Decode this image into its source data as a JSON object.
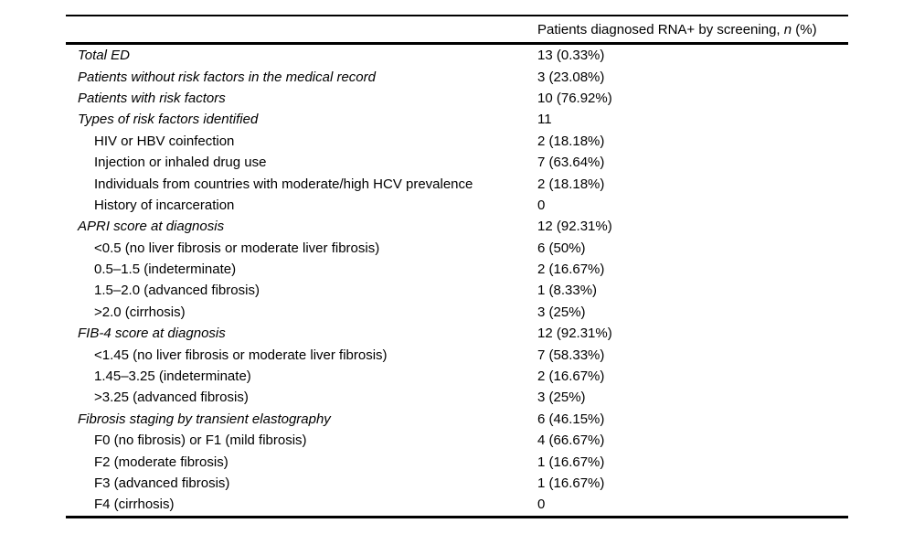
{
  "page": {
    "background_color": "#ffffff",
    "text_color": "#000000"
  },
  "table": {
    "header": {
      "label_column": "",
      "value_column_prefix": "Patients diagnosed RNA+ by screening, ",
      "value_column_n": "n",
      "value_column_suffix": " (%)"
    },
    "rows": [
      {
        "label": "Total ED",
        "value": "13 (0.33%)",
        "indent": 0,
        "italic": true
      },
      {
        "label": "Patients without risk factors in the medical record",
        "value": "3 (23.08%)",
        "indent": 0,
        "italic": true
      },
      {
        "label": "Patients with risk factors",
        "value": "10 (76.92%)",
        "indent": 0,
        "italic": true
      },
      {
        "label": "Types of risk factors identified",
        "value": "11",
        "indent": 0,
        "italic": true
      },
      {
        "label": "HIV or HBV coinfection",
        "value": "2 (18.18%)",
        "indent": 1,
        "italic": false
      },
      {
        "label": "Injection or inhaled drug use",
        "value": "7 (63.64%)",
        "indent": 1,
        "italic": false
      },
      {
        "label": "Individuals from countries with moderate/high HCV prevalence",
        "value": "2 (18.18%)",
        "indent": 1,
        "italic": false
      },
      {
        "label": "History of incarceration",
        "value": "0",
        "indent": 1,
        "italic": false
      },
      {
        "label": "APRI score at diagnosis",
        "value": "12 (92.31%)",
        "indent": 0,
        "italic": true
      },
      {
        "label": "<0.5 (no liver fibrosis or moderate liver fibrosis)",
        "value": "6 (50%)",
        "indent": 1,
        "italic": false
      },
      {
        "label": "0.5–1.5 (indeterminate)",
        "value": "2 (16.67%)",
        "indent": 1,
        "italic": false
      },
      {
        "label": "1.5–2.0 (advanced fibrosis)",
        "value": "1 (8.33%)",
        "indent": 1,
        "italic": false
      },
      {
        "label": ">2.0 (cirrhosis)",
        "value": "3 (25%)",
        "indent": 1,
        "italic": false
      },
      {
        "label": "FIB-4 score at diagnosis",
        "value": "12 (92.31%)",
        "indent": 0,
        "italic": true
      },
      {
        "label": "<1.45 (no liver fibrosis or moderate liver fibrosis)",
        "value": "7 (58.33%)",
        "indent": 1,
        "italic": false
      },
      {
        "label": "1.45–3.25 (indeterminate)",
        "value": "2 (16.67%)",
        "indent": 1,
        "italic": false
      },
      {
        "label": ">3.25 (advanced fibrosis)",
        "value": "3 (25%)",
        "indent": 1,
        "italic": false
      },
      {
        "label": "Fibrosis staging by transient elastography",
        "value": "6 (46.15%)",
        "indent": 0,
        "italic": true
      },
      {
        "label": "F0 (no fibrosis) or F1 (mild fibrosis)",
        "value": "4 (66.67%)",
        "indent": 1,
        "italic": false
      },
      {
        "label": "F2 (moderate fibrosis)",
        "value": "1 (16.67%)",
        "indent": 1,
        "italic": false
      },
      {
        "label": "F3 (advanced fibrosis)",
        "value": "1 (16.67%)",
        "indent": 1,
        "italic": false
      },
      {
        "label": "F4 (cirrhosis)",
        "value": "0",
        "indent": 1,
        "italic": false
      }
    ]
  }
}
